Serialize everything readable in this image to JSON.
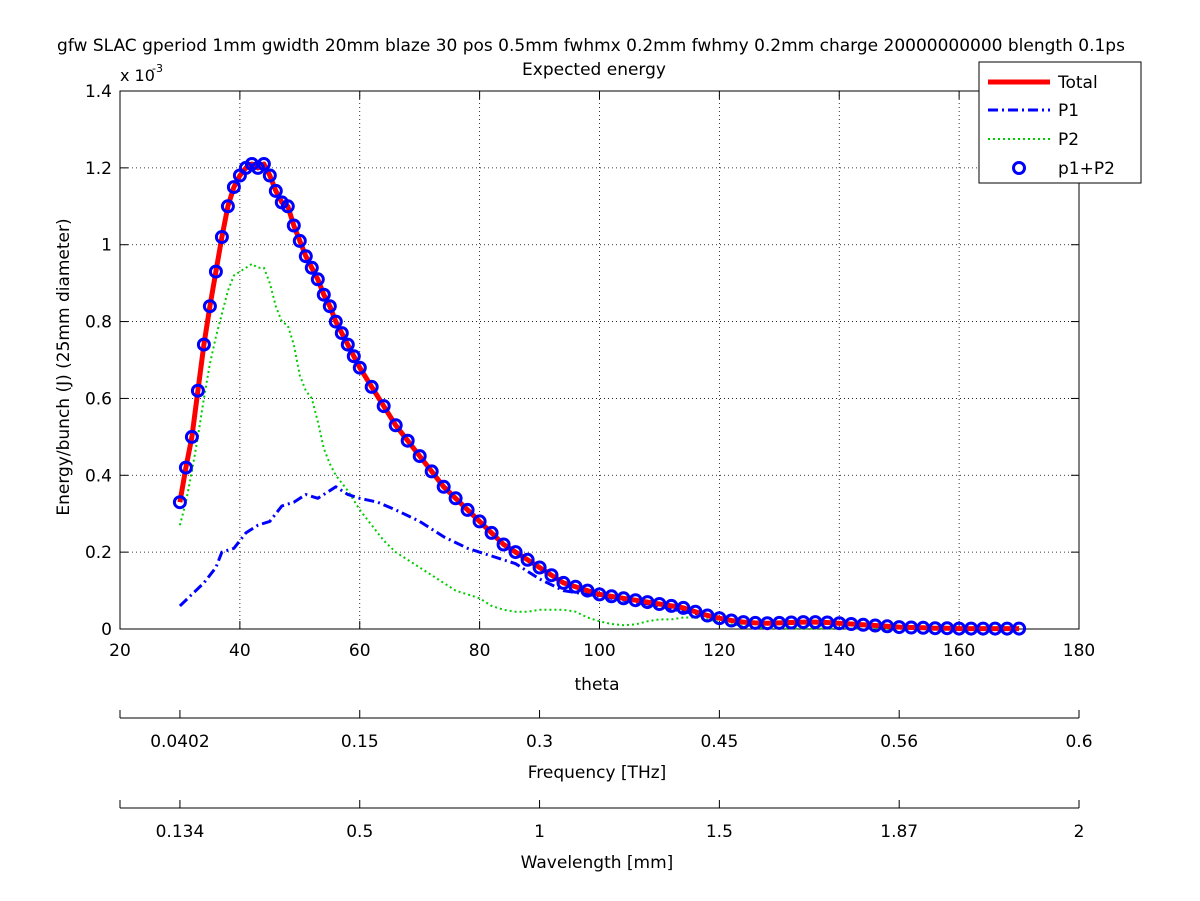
{
  "chart_data": {
    "type": "line",
    "title": "gfw SLAC gperiod 1mm gwidth 20mm blaze 30 pos 0.5mm fwhmx 0.2mm fwhmy 0.2mm charge 20000000000 blength 0.1ps",
    "subtitle": "Expected energy",
    "xlabel": "theta",
    "ylabel": "Energy/bunch (J) (25mm diameter)",
    "y_exponent_base": "x 10",
    "y_exponent_power": "-3",
    "xlim": [
      20,
      180
    ],
    "ylim": [
      0,
      1.4
    ],
    "x_ticks": [
      20,
      40,
      60,
      80,
      100,
      120,
      140,
      160,
      180
    ],
    "y_ticks": [
      0,
      0.2,
      0.4,
      0.6,
      0.8,
      1,
      1.2,
      1.4
    ],
    "x_tick_labels": [
      "20",
      "40",
      "60",
      "80",
      "100",
      "120",
      "140",
      "160",
      "180"
    ],
    "y_tick_labels": [
      "0",
      "0.2",
      "0.4",
      "0.6",
      "0.8",
      "1",
      "1.2",
      "1.4"
    ],
    "grid": true,
    "legend_position": "top-right",
    "secondary_axes": [
      {
        "label": "Frequency [THz]",
        "ticks": [
          {
            "theta": 20,
            "label": ""
          },
          {
            "theta": 30,
            "label": "0.0402"
          },
          {
            "theta": 60,
            "label": "0.15"
          },
          {
            "theta": 90,
            "label": "0.3"
          },
          {
            "theta": 120,
            "label": "0.45"
          },
          {
            "theta": 150,
            "label": "0.56"
          },
          {
            "theta": 180,
            "label": "0.6"
          }
        ]
      },
      {
        "label": "Wavelength [mm]",
        "ticks": [
          {
            "theta": 20,
            "label": ""
          },
          {
            "theta": 30,
            "label": "0.134"
          },
          {
            "theta": 60,
            "label": "0.5"
          },
          {
            "theta": 90,
            "label": "1"
          },
          {
            "theta": 120,
            "label": "1.5"
          },
          {
            "theta": 150,
            "label": "1.87"
          },
          {
            "theta": 180,
            "label": "2"
          }
        ]
      }
    ],
    "series": [
      {
        "name": "Total",
        "color": "#ff0000",
        "style": "solid",
        "points": [
          [
            30,
            0.33
          ],
          [
            31,
            0.42
          ],
          [
            32,
            0.5
          ],
          [
            33,
            0.62
          ],
          [
            34,
            0.74
          ],
          [
            35,
            0.84
          ],
          [
            36,
            0.93
          ],
          [
            37,
            1.02
          ],
          [
            38,
            1.1
          ],
          [
            39,
            1.15
          ],
          [
            40,
            1.18
          ],
          [
            41,
            1.2
          ],
          [
            42,
            1.21
          ],
          [
            43,
            1.2
          ],
          [
            44,
            1.21
          ],
          [
            45,
            1.18
          ],
          [
            46,
            1.14
          ],
          [
            47,
            1.11
          ],
          [
            48,
            1.1
          ],
          [
            49,
            1.05
          ],
          [
            50,
            1.01
          ],
          [
            51,
            0.97
          ],
          [
            52,
            0.94
          ],
          [
            53,
            0.91
          ],
          [
            54,
            0.87
          ],
          [
            55,
            0.84
          ],
          [
            56,
            0.8
          ],
          [
            57,
            0.77
          ],
          [
            58,
            0.74
          ],
          [
            59,
            0.71
          ],
          [
            60,
            0.68
          ],
          [
            62,
            0.63
          ],
          [
            64,
            0.58
          ],
          [
            66,
            0.53
          ],
          [
            68,
            0.49
          ],
          [
            70,
            0.45
          ],
          [
            72,
            0.41
          ],
          [
            74,
            0.37
          ],
          [
            76,
            0.34
          ],
          [
            78,
            0.31
          ],
          [
            80,
            0.28
          ],
          [
            82,
            0.25
          ],
          [
            84,
            0.22
          ],
          [
            86,
            0.2
          ],
          [
            88,
            0.18
          ],
          [
            90,
            0.16
          ],
          [
            92,
            0.14
          ],
          [
            94,
            0.12
          ],
          [
            96,
            0.11
          ],
          [
            98,
            0.1
          ],
          [
            100,
            0.09
          ],
          [
            102,
            0.085
          ],
          [
            104,
            0.08
          ],
          [
            106,
            0.075
          ],
          [
            108,
            0.07
          ],
          [
            110,
            0.065
          ],
          [
            112,
            0.06
          ],
          [
            114,
            0.055
          ],
          [
            116,
            0.045
          ],
          [
            118,
            0.035
          ],
          [
            120,
            0.028
          ],
          [
            122,
            0.022
          ],
          [
            124,
            0.018
          ],
          [
            126,
            0.016
          ],
          [
            128,
            0.015
          ],
          [
            130,
            0.016
          ],
          [
            132,
            0.017
          ],
          [
            134,
            0.018
          ],
          [
            136,
            0.018
          ],
          [
            138,
            0.017
          ],
          [
            140,
            0.015
          ],
          [
            142,
            0.013
          ],
          [
            144,
            0.011
          ],
          [
            146,
            0.009
          ],
          [
            148,
            0.007
          ],
          [
            150,
            0.005
          ],
          [
            152,
            0.004
          ],
          [
            154,
            0.003
          ],
          [
            156,
            0.002
          ],
          [
            158,
            0.002
          ],
          [
            160,
            0.001
          ],
          [
            162,
            0.001
          ],
          [
            164,
            0.001
          ],
          [
            166,
            0.001
          ],
          [
            168,
            0.001
          ],
          [
            170,
            0.001
          ]
        ]
      },
      {
        "name": "P1",
        "color": "#0000ff",
        "style": "dashdot",
        "points": [
          [
            30,
            0.06
          ],
          [
            32,
            0.09
          ],
          [
            34,
            0.12
          ],
          [
            36,
            0.16
          ],
          [
            37,
            0.2
          ],
          [
            39,
            0.21
          ],
          [
            41,
            0.25
          ],
          [
            43,
            0.27
          ],
          [
            45,
            0.28
          ],
          [
            47,
            0.32
          ],
          [
            49,
            0.33
          ],
          [
            51,
            0.35
          ],
          [
            53,
            0.34
          ],
          [
            55,
            0.36
          ],
          [
            56,
            0.37
          ],
          [
            58,
            0.35
          ],
          [
            60,
            0.34
          ],
          [
            63,
            0.33
          ],
          [
            66,
            0.31
          ],
          [
            70,
            0.28
          ],
          [
            74,
            0.24
          ],
          [
            78,
            0.21
          ],
          [
            82,
            0.19
          ],
          [
            86,
            0.17
          ],
          [
            90,
            0.13
          ],
          [
            94,
            0.1
          ],
          [
            98,
            0.09
          ],
          [
            102,
            0.08
          ],
          [
            106,
            0.07
          ],
          [
            110,
            0.06
          ],
          [
            114,
            0.045
          ],
          [
            118,
            0.035
          ],
          [
            122,
            0.022
          ],
          [
            126,
            0.017
          ],
          [
            130,
            0.016
          ],
          [
            134,
            0.018
          ],
          [
            138,
            0.017
          ],
          [
            142,
            0.013
          ],
          [
            146,
            0.009
          ],
          [
            150,
            0.005
          ],
          [
            155,
            0.003
          ],
          [
            160,
            0.001
          ],
          [
            165,
            0.001
          ],
          [
            170,
            0.001
          ]
        ]
      },
      {
        "name": "P2",
        "color": "#00cc00",
        "style": "dotted",
        "points": [
          [
            30,
            0.27
          ],
          [
            31,
            0.33
          ],
          [
            32,
            0.41
          ],
          [
            33,
            0.5
          ],
          [
            34,
            0.6
          ],
          [
            35,
            0.69
          ],
          [
            36,
            0.76
          ],
          [
            37,
            0.82
          ],
          [
            38,
            0.88
          ],
          [
            39,
            0.92
          ],
          [
            40,
            0.93
          ],
          [
            41,
            0.94
          ],
          [
            42,
            0.95
          ],
          [
            43,
            0.94
          ],
          [
            44,
            0.94
          ],
          [
            45,
            0.9
          ],
          [
            46,
            0.84
          ],
          [
            47,
            0.8
          ],
          [
            48,
            0.79
          ],
          [
            49,
            0.74
          ],
          [
            50,
            0.66
          ],
          [
            51,
            0.62
          ],
          [
            52,
            0.6
          ],
          [
            53,
            0.54
          ],
          [
            54,
            0.47
          ],
          [
            55,
            0.43
          ],
          [
            56,
            0.4
          ],
          [
            58,
            0.36
          ],
          [
            60,
            0.31
          ],
          [
            62,
            0.27
          ],
          [
            64,
            0.23
          ],
          [
            66,
            0.2
          ],
          [
            68,
            0.18
          ],
          [
            70,
            0.16
          ],
          [
            72,
            0.14
          ],
          [
            74,
            0.12
          ],
          [
            76,
            0.1
          ],
          [
            78,
            0.09
          ],
          [
            80,
            0.08
          ],
          [
            82,
            0.06
          ],
          [
            84,
            0.05
          ],
          [
            86,
            0.045
          ],
          [
            88,
            0.045
          ],
          [
            90,
            0.05
          ],
          [
            92,
            0.05
          ],
          [
            94,
            0.05
          ],
          [
            96,
            0.045
          ],
          [
            98,
            0.03
          ],
          [
            100,
            0.02
          ],
          [
            102,
            0.013
          ],
          [
            104,
            0.01
          ],
          [
            106,
            0.012
          ],
          [
            108,
            0.02
          ],
          [
            110,
            0.025
          ],
          [
            112,
            0.025
          ],
          [
            114,
            0.03
          ],
          [
            116,
            0.03
          ],
          [
            118,
            0.025
          ],
          [
            120,
            0.018
          ],
          [
            122,
            0.012
          ],
          [
            124,
            0.008
          ],
          [
            126,
            0.004
          ],
          [
            128,
            0.002
          ],
          [
            130,
            0.001
          ],
          [
            135,
            0.001
          ],
          [
            140,
            0.001
          ],
          [
            145,
            0.001
          ],
          [
            150,
            0.001
          ],
          [
            160,
            0.001
          ],
          [
            170,
            0.001
          ]
        ]
      },
      {
        "name": "p1+P2",
        "color": "#0000ff",
        "style": "circles",
        "ref_series": 0
      }
    ]
  }
}
